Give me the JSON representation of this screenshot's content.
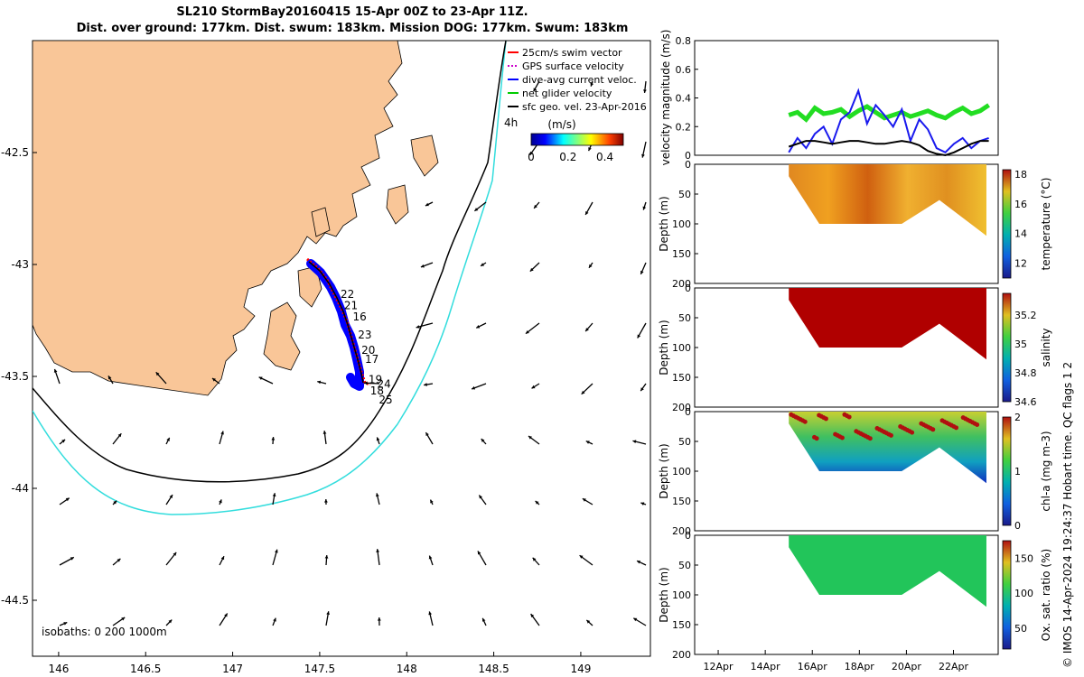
{
  "title": {
    "line1": "SL210 StormBay20160415 15-Apr 00Z to 23-Apr 11Z.",
    "line2": "Dist. over ground: 177km. Dist. swum: 183km. Mission DOG: 177km. Swum: 183km"
  },
  "chart_data": {
    "map": {
      "type": "map",
      "x_ticks": [
        "146",
        "146.5",
        "147",
        "147.5",
        "148",
        "148.5",
        "149"
      ],
      "y_ticks": [
        "-42.5",
        "-43",
        "-43.5",
        "-44",
        "-44.5"
      ],
      "xlim": [
        145.85,
        149.4
      ],
      "ylim": [
        -44.75,
        -42.0
      ],
      "legend": [
        {
          "label": "25cm/s swim vector",
          "color": "#ff0000"
        },
        {
          "label": "GPS surface velocity",
          "color": "#cc00cc"
        },
        {
          "label": "dive-avg current veloc.",
          "color": "#0000ff"
        },
        {
          "label": "net glider velocity",
          "color": "#00cc00"
        },
        {
          "label": "sfc geo. vel. 23-Apr-2016",
          "color": "#000000"
        }
      ],
      "legend_extra": "4h",
      "colorbar": {
        "label": "(m/s)",
        "ticks": [
          "0",
          "0.2",
          "0.4"
        ],
        "range": [
          0,
          0.5
        ]
      },
      "day_labels": [
        {
          "label": "22",
          "lon": 147.62,
          "lat": -43.15
        },
        {
          "label": "21",
          "lon": 147.64,
          "lat": -43.2
        },
        {
          "label": "16",
          "lon": 147.69,
          "lat": -43.25
        },
        {
          "label": "23",
          "lon": 147.72,
          "lat": -43.33
        },
        {
          "label": "20",
          "lon": 147.74,
          "lat": -43.4
        },
        {
          "label": "17",
          "lon": 147.76,
          "lat": -43.44
        },
        {
          "label": "19",
          "lon": 147.78,
          "lat": -43.53
        },
        {
          "label": "24",
          "lon": 147.83,
          "lat": -43.55
        },
        {
          "label": "18",
          "lon": 147.79,
          "lat": -43.58
        },
        {
          "label": "25",
          "lon": 147.84,
          "lat": -43.62
        }
      ],
      "isobaths_label": "isobaths: 0   200  1000m"
    },
    "velocity": {
      "type": "line",
      "ylabel": "velocity magnitude (m/s)",
      "ylim": [
        0,
        0.8
      ],
      "y_ticks": [
        "0",
        "0.2",
        "0.4",
        "0.6",
        "0.8"
      ],
      "series": [
        {
          "name": "net glider velocity",
          "color": "#22dd22",
          "values": [
            0.28,
            0.3,
            0.25,
            0.33,
            0.29,
            0.3,
            0.32,
            0.27,
            0.31,
            0.34,
            0.3,
            0.26,
            0.28,
            0.3,
            0.27,
            0.29,
            0.31,
            0.28,
            0.26,
            0.3,
            0.33,
            0.29,
            0.31,
            0.35
          ]
        },
        {
          "name": "dive-avg current veloc.",
          "color": "#1a1aee",
          "values": [
            0.02,
            0.12,
            0.05,
            0.15,
            0.2,
            0.08,
            0.25,
            0.3,
            0.45,
            0.22,
            0.35,
            0.28,
            0.2,
            0.32,
            0.1,
            0.25,
            0.18,
            0.05,
            0.02,
            0.08,
            0.12,
            0.05,
            0.1,
            0.12
          ]
        },
        {
          "name": "sfc geo. vel.",
          "color": "#000000",
          "values": [
            0.06,
            0.08,
            0.1,
            0.1,
            0.09,
            0.08,
            0.09,
            0.1,
            0.1,
            0.09,
            0.08,
            0.08,
            0.09,
            0.1,
            0.09,
            0.07,
            0.03,
            0.01,
            0.0,
            0.02,
            0.05,
            0.08,
            0.1,
            0.1
          ]
        }
      ]
    },
    "sections": [
      {
        "type": "heatmap",
        "ylabel": "Depth (m)",
        "cblabel": "temperature (°C)",
        "cb_ticks": [
          "12",
          "14",
          "16",
          "18"
        ],
        "cb_range": [
          11,
          18.3
        ]
      },
      {
        "type": "heatmap",
        "ylabel": "Depth (m)",
        "cblabel": "salinity",
        "cb_ticks": [
          "34.6",
          "34.8",
          "35",
          "35.2"
        ],
        "cb_range": [
          34.6,
          35.35
        ]
      },
      {
        "type": "heatmap",
        "ylabel": "Depth (m)",
        "cblabel": "chl-a (mg m-3)",
        "cb_ticks": [
          "0",
          "1",
          "2"
        ],
        "cb_range": [
          0,
          2
        ]
      },
      {
        "type": "heatmap",
        "ylabel": "Depth (m)",
        "cblabel": "Ox. sat. ratio (%)",
        "cb_ticks": [
          "50",
          "100",
          "150"
        ],
        "cb_range": [
          20,
          175
        ]
      }
    ],
    "depth_ticks": [
      "0",
      "50",
      "100",
      "150",
      "200"
    ],
    "time_ticks": [
      "12Apr",
      "14Apr",
      "16Apr",
      "18Apr",
      "20Apr",
      "22Apr"
    ],
    "dive_profile_depth": [
      {
        "day": 15.0,
        "depth": 20
      },
      {
        "day": 16.3,
        "depth": 100
      },
      {
        "day": 19.8,
        "depth": 100
      },
      {
        "day": 21.4,
        "depth": 60
      },
      {
        "day": 23.4,
        "depth": 120
      }
    ]
  },
  "credit": "© IMOS 14-Apr-2024 19:24:37 Hobart time. QC flags 1  2",
  "colors": {
    "land": "#f9c698",
    "cyan_isobath": "#33dddd",
    "track_blue": "#0000ff",
    "track_red": "#ff0000"
  }
}
